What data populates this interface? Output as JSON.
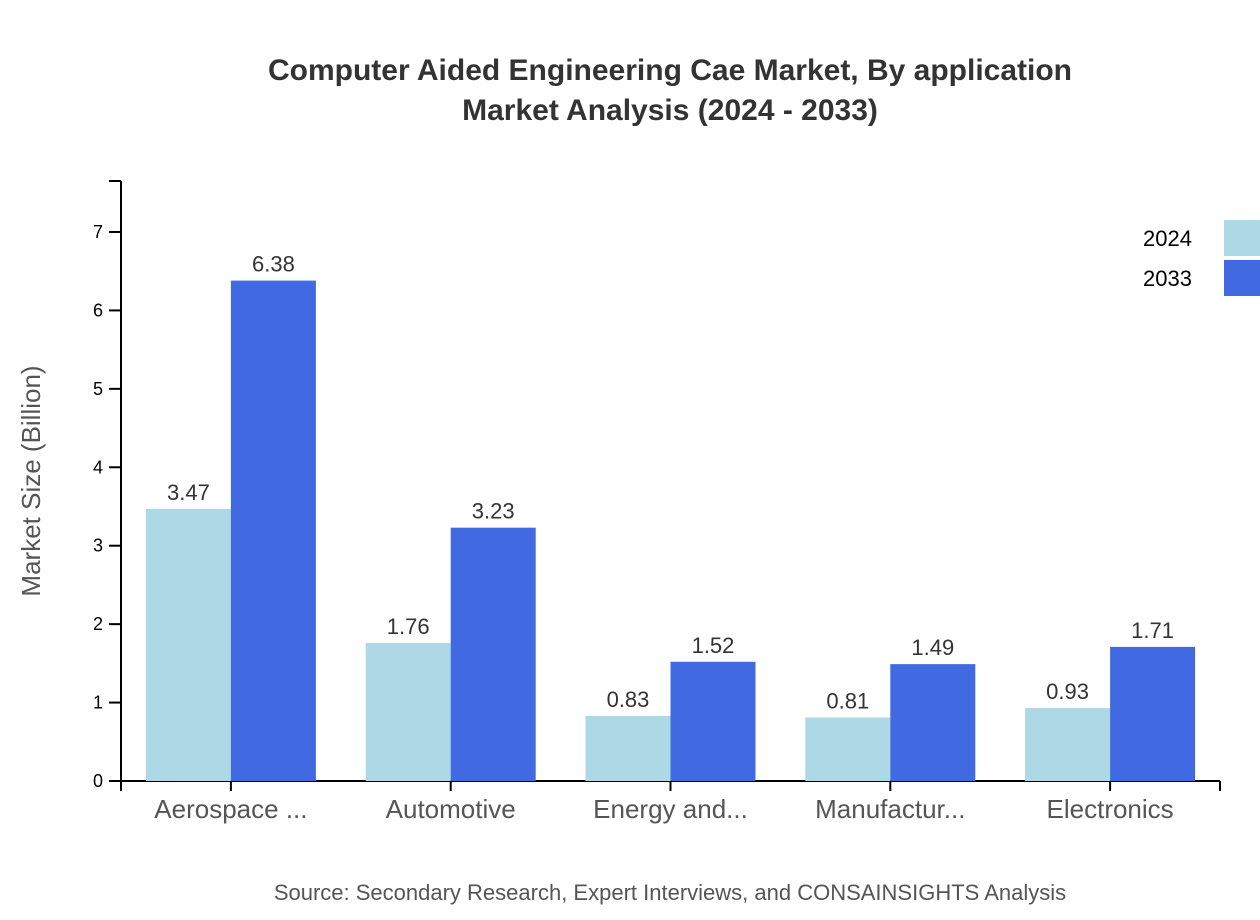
{
  "chart_data": {
    "type": "bar",
    "title": "Computer Aided Engineering Cae Market, By application",
    "subtitle": "Market Analysis (2024 - 2033)",
    "xlabel": "",
    "ylabel": "Market Size (Billion)",
    "ylim": [
      0,
      7.65
    ],
    "yticks": [
      0,
      1,
      2,
      3,
      4,
      5,
      6,
      7
    ],
    "categories": [
      "Aerospace ...",
      "Automotive",
      "Energy and...",
      "Manufactur...",
      "Electronics"
    ],
    "series": [
      {
        "name": "2024",
        "color": "#add8e6",
        "values": [
          3.47,
          1.76,
          0.83,
          0.81,
          0.93
        ]
      },
      {
        "name": "2033",
        "color": "#4169e1",
        "values": [
          6.38,
          3.23,
          1.52,
          1.49,
          1.71
        ]
      }
    ],
    "grid": false,
    "legend": "top-right",
    "source": "Source: Secondary Research, Expert Interviews, and CONSAINSIGHTS Analysis"
  }
}
